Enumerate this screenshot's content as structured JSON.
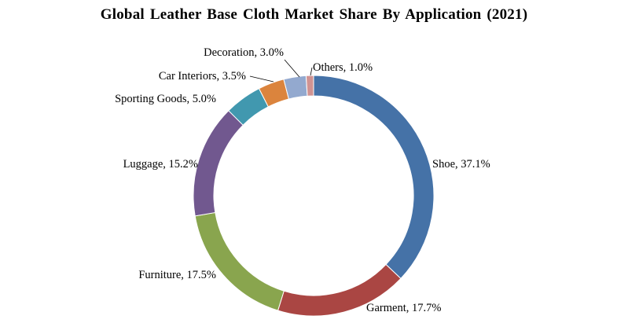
{
  "chart_data": {
    "type": "pie",
    "variant": "donut",
    "title": "Global Leather Base Cloth Market Share By Application (2021)",
    "unit": "%",
    "slices": [
      {
        "name": "Shoe",
        "value": 37.1,
        "label": "Shoe, 37.1%",
        "color": "#4572A7"
      },
      {
        "name": "Garment",
        "value": 17.7,
        "label": "Garment, 17.7%",
        "color": "#AA4643"
      },
      {
        "name": "Furniture",
        "value": 17.5,
        "label": "Furniture, 17.5%",
        "color": "#89A54E"
      },
      {
        "name": "Luggage",
        "value": 15.2,
        "label": "Luggage,  15.2%",
        "color": "#71588F"
      },
      {
        "name": "Sporting Goods",
        "value": 5.0,
        "label": "Sporting Goods, 5.0%",
        "color": "#4198AF"
      },
      {
        "name": "Car Interiors",
        "value": 3.5,
        "label": "Car Interiors, 3.5%",
        "color": "#DB843D"
      },
      {
        "name": "Decoration",
        "value": 3.0,
        "label": "Decoration, 3.0%",
        "color": "#93A9CF"
      },
      {
        "name": "Others",
        "value": 1.0,
        "label": "Others, 1.0%",
        "color": "#D19392"
      }
    ],
    "start_angle_deg": 0,
    "direction": "clockwise",
    "legend": "none"
  }
}
